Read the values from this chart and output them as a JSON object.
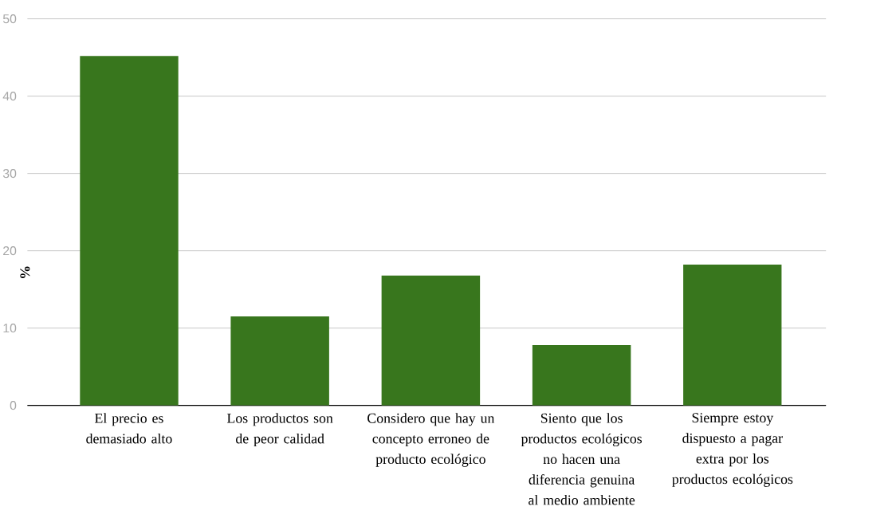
{
  "chart_data": {
    "type": "bar",
    "ylabel": "%",
    "categories": [
      "El precio es demasiado alto",
      "Los productos son de peor calidad",
      "Considero que hay un concepto erroneo de producto ecológico",
      "Siento que los productos ecológicos no hacen una diferencia genuina al medio ambiente",
      "Siempre estoy dispuesto a pagar extra por los productos ecológicos"
    ],
    "values": [
      45.2,
      11.5,
      16.8,
      7.8,
      18.2
    ],
    "color": "#38761d",
    "ylim": [
      0,
      50
    ],
    "yticks": [
      0,
      10,
      20,
      30,
      40,
      50
    ],
    "grid": "y"
  }
}
